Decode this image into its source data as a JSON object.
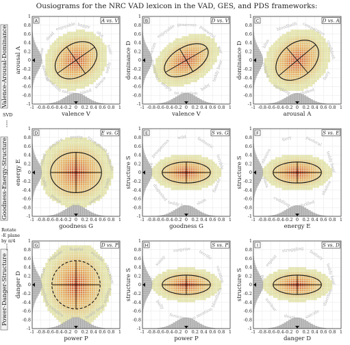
{
  "title": "Ousiograms for the NRC VAD lexicon in the VAD, GES, and PDS frameworks:",
  "row_labels": [
    "Valence-Arousal-Dominance",
    "Goodness-Energy-Structure",
    "Power-Danger-Structure"
  ],
  "side_notes": {
    "svd": "SVD",
    "rotate_line1": "Rotate",
    "rotate_line2": "-E plane",
    "rotate_line3": "by π/4"
  },
  "colors": {
    "box": "#e4e4a2",
    "box_edge": "#c9c98a",
    "hot": "#d6402a",
    "grid": "#e6e6e6"
  },
  "chart_data": [
    {
      "type": "heatmap",
      "panel": "A",
      "pair": "A vs. V",
      "xlabel": "valence V",
      "ylabel": "arousal A",
      "xlim": [
        -1,
        1
      ],
      "ylim": [
        -1,
        1
      ],
      "ellipse": {
        "cx": 0,
        "cy": 0,
        "rx": 0.52,
        "ry": 0.37,
        "angle_deg": 35,
        "dashed": false
      },
      "words": [
        "toxic",
        "shit",
        "happy",
        "enjoyable",
        "dead",
        "slow",
        "no mention",
        "mountain",
        "nature",
        "bland",
        "silence",
        "teddy"
      ]
    },
    {
      "type": "heatmap",
      "panel": "B",
      "pair": "D vs. V",
      "xlabel": "valence V",
      "ylabel": "dominance D",
      "xlim": [
        -1,
        1
      ],
      "ylim": [
        -1,
        1
      ],
      "ellipse": {
        "cx": 0,
        "cy": 0,
        "rx": 0.55,
        "ry": 0.3,
        "angle_deg": 30,
        "dashed": false
      },
      "words": [
        "war",
        "powerful",
        "generous",
        "enjoyable",
        "victim",
        "frustrated",
        "empty",
        "no mention",
        "baby",
        "teddy bear"
      ]
    },
    {
      "type": "heatmap",
      "panel": "C",
      "pair": "D vs. A",
      "xlabel": "arousal A",
      "ylabel": "dominance D",
      "xlim": [
        -1,
        1
      ],
      "ylim": [
        -1,
        1
      ],
      "ellipse": {
        "cx": 0,
        "cy": 0,
        "rx": 0.55,
        "ry": 0.38,
        "angle_deg": 40,
        "dashed": false
      },
      "words": [
        "confident",
        "competitive",
        "bloodbath",
        "bliss",
        "relaxed",
        "smirking",
        "choked",
        "fairy"
      ]
    },
    {
      "type": "heatmap",
      "panel": "D",
      "pair": "E vs. G",
      "xlabel": "goodness G",
      "ylabel": "energy E",
      "xlim": [
        -1,
        1
      ],
      "ylim": [
        -1,
        1
      ],
      "ellipse": {
        "cx": 0,
        "cy": 0,
        "rx": 0.58,
        "ry": 0.46,
        "angle_deg": 0,
        "dashed": false
      },
      "words": [
        "homicide",
        "triumphant",
        "pretty",
        "positive",
        "relaxed",
        "calm",
        "peace",
        "dull",
        "serene",
        "tomb"
      ]
    },
    {
      "type": "heatmap",
      "panel": "E",
      "pair": "S vs. G",
      "xlabel": "goodness G",
      "ylabel": "structure S",
      "xlim": [
        -1,
        1
      ],
      "ylim": [
        -1,
        1
      ],
      "ellipse": {
        "cx": 0,
        "cy": 0,
        "rx": 0.55,
        "ry": 0.24,
        "angle_deg": 0,
        "dashed": false
      },
      "words": [
        "terrible",
        "fantastic",
        "wild",
        "prosperous",
        "positive",
        "disgusted",
        "teddy bear",
        "slum",
        "fiancée"
      ]
    },
    {
      "type": "heatmap",
      "panel": "F",
      "pair": "S vs. E",
      "xlabel": "energy E",
      "ylabel": "structure S",
      "xlim": [
        -1,
        1
      ],
      "ylim": [
        -1,
        1
      ],
      "ellipse": {
        "cx": 0,
        "cy": 0,
        "rx": 0.55,
        "ry": 0.24,
        "angle_deg": 0,
        "dashed": false
      },
      "words": [
        "teddy bear",
        "pastoral",
        "fiery",
        "abusive",
        "plaza",
        "cuddling",
        "thrilled",
        "shadow"
      ]
    },
    {
      "type": "heatmap",
      "panel": "G",
      "pair": "D vs. P",
      "xlabel": "power P",
      "ylabel": "danger D",
      "xlim": [
        -1,
        1
      ],
      "ylim": [
        -1,
        1
      ],
      "ellipse": {
        "cx": 0,
        "cy": 0,
        "rx": 0.55,
        "ry": 0.55,
        "angle_deg": 0,
        "dashed": true
      },
      "words": [
        "terrorism",
        "suicide",
        "fearful",
        "explode",
        "weak",
        "sweetheart",
        "vampire",
        "lord",
        "teddy bear",
        "nothing"
      ]
    },
    {
      "type": "heatmap",
      "panel": "H",
      "pair": "S vs. P",
      "xlabel": "power P",
      "ylabel": "structure S",
      "xlim": [
        -1,
        1
      ],
      "ylim": [
        -1,
        1
      ],
      "ellipse": {
        "cx": 0,
        "cy": 0,
        "rx": 0.55,
        "ry": 0.22,
        "angle_deg": 0,
        "dashed": false
      },
      "words": [
        "vacation",
        "terrific",
        "surprise",
        "sunny",
        "happy",
        "bully",
        "ferocious",
        "no mention",
        "bloodbath"
      ]
    },
    {
      "type": "heatmap",
      "panel": "I",
      "pair": "S vs. D",
      "xlabel": "danger D",
      "ylabel": "structure S",
      "xlim": [
        -1,
        1
      ],
      "ylim": [
        -1,
        1
      ],
      "ellipse": {
        "cx": 0,
        "cy": 0,
        "rx": 0.55,
        "ry": 0.22,
        "angle_deg": 0,
        "dashed": false
      },
      "words": [
        "teddy bear",
        "fantasy",
        "struggling",
        "exploit",
        "triumph",
        "nuclear",
        "death",
        "suicide",
        "diarrhea"
      ]
    }
  ]
}
